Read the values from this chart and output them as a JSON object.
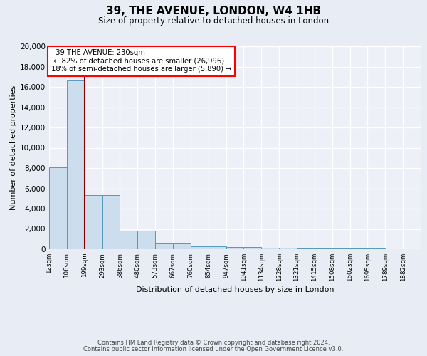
{
  "title": "39, THE AVENUE, LONDON, W4 1HB",
  "subtitle": "Size of property relative to detached houses in London",
  "xlabel": "Distribution of detached houses by size in London",
  "ylabel": "Number of detached properties",
  "bin_labels": [
    "12sqm",
    "106sqm",
    "199sqm",
    "293sqm",
    "386sqm",
    "480sqm",
    "573sqm",
    "667sqm",
    "760sqm",
    "854sqm",
    "947sqm",
    "1041sqm",
    "1134sqm",
    "1228sqm",
    "1321sqm",
    "1415sqm",
    "1508sqm",
    "1602sqm",
    "1695sqm",
    "1789sqm",
    "1882sqm"
  ],
  "bar_heights": [
    8100,
    16600,
    5300,
    5300,
    1850,
    1850,
    650,
    650,
    300,
    250,
    190,
    180,
    140,
    130,
    80,
    70,
    60,
    50,
    40,
    30,
    0
  ],
  "bar_color": "#ccdded",
  "bar_edge_color": "#5599bb",
  "annotation_text_line1": "39 THE AVENUE: 230sqm",
  "annotation_text_line2": "← 82% of detached houses are smaller (26,996)",
  "annotation_text_line3": "18% of semi-detached houses are larger (5,890) →",
  "red_line_x": 2,
  "ylim_max": 20000,
  "yticks": [
    0,
    2000,
    4000,
    6000,
    8000,
    10000,
    12000,
    14000,
    16000,
    18000,
    20000
  ],
  "bg_color": "#e8edf5",
  "plot_bg_color": "#edf1f7",
  "footer_line1": "Contains HM Land Registry data © Crown copyright and database right 2024.",
  "footer_line2": "Contains public sector information licensed under the Open Government Licence v3.0.",
  "title_fontsize": 11,
  "subtitle_fontsize": 8.5,
  "ylabel_fontsize": 8,
  "xlabel_fontsize": 8,
  "ytick_fontsize": 7.5,
  "xtick_fontsize": 6.2,
  "footer_fontsize": 6.0,
  "annot_fontsize": 7.2
}
